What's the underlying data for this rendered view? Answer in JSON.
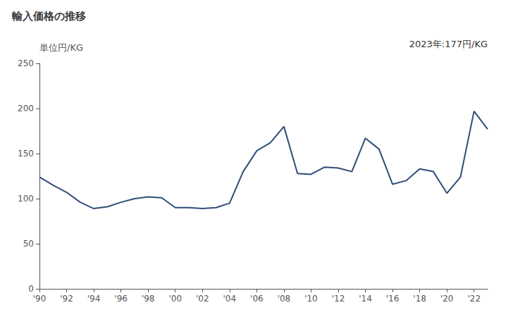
{
  "chart_data": {
    "type": "line",
    "title": "輸入価格の推移",
    "ylabel": "単位円/KG",
    "annotation": "2023年:177円/KG",
    "x": [
      1990,
      1991,
      1992,
      1993,
      1994,
      1995,
      1996,
      1997,
      1998,
      1999,
      2000,
      2001,
      2002,
      2003,
      2004,
      2005,
      2006,
      2007,
      2008,
      2009,
      2010,
      2011,
      2012,
      2013,
      2014,
      2015,
      2016,
      2017,
      2018,
      2019,
      2020,
      2021,
      2022,
      2023
    ],
    "values": [
      124,
      115,
      107,
      96,
      89,
      91,
      96,
      100,
      102,
      101,
      90,
      90,
      89,
      90,
      95,
      130,
      153,
      162,
      180,
      128,
      127,
      135,
      134,
      130,
      167,
      155,
      116,
      120,
      133,
      130,
      106,
      124,
      197,
      177
    ],
    "color": "#2e4d7a",
    "xlim": [
      1990,
      2023
    ],
    "xticks": [
      {
        "value": 1990,
        "label": "'90"
      },
      {
        "value": 1992,
        "label": "'92"
      },
      {
        "value": 1994,
        "label": "'94"
      },
      {
        "value": 1996,
        "label": "'96"
      },
      {
        "value": 1998,
        "label": "'98"
      },
      {
        "value": 2000,
        "label": "'00"
      },
      {
        "value": 2002,
        "label": "'02"
      },
      {
        "value": 2004,
        "label": "'04"
      },
      {
        "value": 2006,
        "label": "'06"
      },
      {
        "value": 2008,
        "label": "'08"
      },
      {
        "value": 2010,
        "label": "'10"
      },
      {
        "value": 2012,
        "label": "'12"
      },
      {
        "value": 2014,
        "label": "'14"
      },
      {
        "value": 2016,
        "label": "'16"
      },
      {
        "value": 2018,
        "label": "'18"
      },
      {
        "value": 2020,
        "label": "'20"
      },
      {
        "value": 2022,
        "label": "'22"
      }
    ],
    "ylim": [
      0,
      250
    ],
    "yticks": [
      0,
      50,
      100,
      150,
      200,
      250
    ],
    "grid": false
  }
}
